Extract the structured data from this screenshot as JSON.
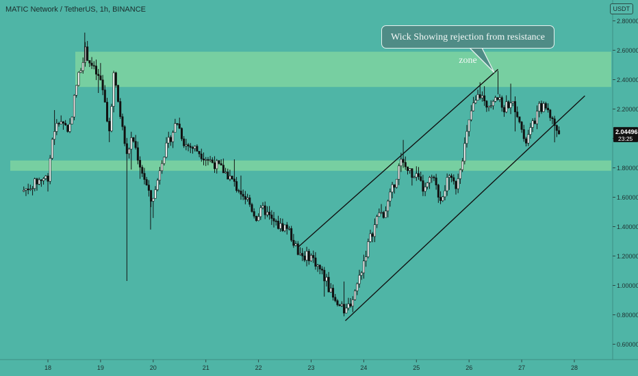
{
  "header": {
    "title": "MATIC Network / TetherUS, 1h, BINANCE",
    "currency": "USDT"
  },
  "annotation": {
    "text": "Wick Showing rejection from resistance zone"
  },
  "price_tag": {
    "value": "2.04496",
    "countdown": "23:25"
  },
  "colors": {
    "background": "#4fb5a6",
    "zone": "#7ed3a0",
    "candle_up": "#ffffff",
    "candle_down": "#111111",
    "line": "#111111"
  },
  "chart_data": {
    "type": "candlestick",
    "y_axis": {
      "range": [
        0.55,
        2.9
      ],
      "ticks": [
        "2.80000",
        "2.60000",
        "2.40000",
        "2.20000",
        "2.00000",
        "1.80000",
        "1.60000",
        "1.40000",
        "1.20000",
        "1.00000",
        "0.80000",
        "0.60000"
      ]
    },
    "x_axis": {
      "range": [
        17.5,
        28.5
      ],
      "ticks": [
        "18",
        "19",
        "20",
        "21",
        "22",
        "23",
        "24",
        "25",
        "26",
        "27",
        "28"
      ]
    },
    "zones": [
      {
        "name": "resistance",
        "from": 2.35,
        "to": 2.59
      },
      {
        "name": "support",
        "from": 1.78,
        "to": 1.85
      }
    ],
    "trendlines": [
      {
        "from": [
          22.75,
          1.26
        ],
        "to": [
          26.55,
          2.47
        ]
      },
      {
        "from": [
          23.65,
          0.76
        ],
        "to": [
          28.2,
          2.29
        ]
      }
    ],
    "last_price": 2.04496,
    "price_path": [
      [
        17.5,
        1.64
      ],
      [
        17.7,
        1.68
      ],
      [
        17.85,
        1.72
      ],
      [
        18.0,
        1.74
      ],
      [
        18.1,
        2.05
      ],
      [
        18.25,
        2.13
      ],
      [
        18.4,
        2.05
      ],
      [
        18.55,
        2.38
      ],
      [
        18.7,
        2.6
      ],
      [
        18.85,
        2.48
      ],
      [
        18.95,
        2.42
      ],
      [
        19.05,
        2.33
      ],
      [
        19.15,
        2.0
      ],
      [
        19.25,
        2.43
      ],
      [
        19.4,
        2.1
      ],
      [
        19.5,
        1.88
      ],
      [
        19.6,
        2.02
      ],
      [
        19.75,
        1.82
      ],
      [
        19.85,
        1.71
      ],
      [
        19.95,
        1.57
      ],
      [
        20.05,
        1.65
      ],
      [
        20.15,
        1.85
      ],
      [
        20.3,
        1.98
      ],
      [
        20.45,
        2.12
      ],
      [
        20.6,
        1.96
      ],
      [
        20.8,
        1.93
      ],
      [
        21.0,
        1.87
      ],
      [
        21.2,
        1.82
      ],
      [
        21.4,
        1.76
      ],
      [
        21.6,
        1.66
      ],
      [
        21.8,
        1.58
      ],
      [
        21.95,
        1.46
      ],
      [
        22.1,
        1.52
      ],
      [
        22.25,
        1.44
      ],
      [
        22.4,
        1.4
      ],
      [
        22.55,
        1.4
      ],
      [
        22.7,
        1.26
      ],
      [
        22.85,
        1.2
      ],
      [
        23.0,
        1.2
      ],
      [
        23.15,
        1.12
      ],
      [
        23.3,
        1.02
      ],
      [
        23.45,
        0.88
      ],
      [
        23.65,
        0.82
      ],
      [
        23.8,
        0.92
      ],
      [
        23.95,
        1.1
      ],
      [
        24.1,
        1.3
      ],
      [
        24.25,
        1.45
      ],
      [
        24.4,
        1.5
      ],
      [
        24.55,
        1.66
      ],
      [
        24.7,
        1.84
      ],
      [
        24.85,
        1.78
      ],
      [
        25.0,
        1.74
      ],
      [
        25.15,
        1.64
      ],
      [
        25.3,
        1.74
      ],
      [
        25.45,
        1.58
      ],
      [
        25.6,
        1.72
      ],
      [
        25.75,
        1.68
      ],
      [
        25.9,
        1.92
      ],
      [
        26.05,
        2.2
      ],
      [
        26.2,
        2.3
      ],
      [
        26.35,
        2.22
      ],
      [
        26.5,
        2.3
      ],
      [
        26.65,
        2.2
      ],
      [
        26.8,
        2.26
      ],
      [
        26.95,
        2.16
      ],
      [
        27.05,
        1.95
      ],
      [
        27.2,
        2.08
      ],
      [
        27.35,
        2.22
      ],
      [
        27.5,
        2.2
      ],
      [
        27.6,
        2.11
      ],
      [
        27.7,
        2.04
      ]
    ]
  }
}
